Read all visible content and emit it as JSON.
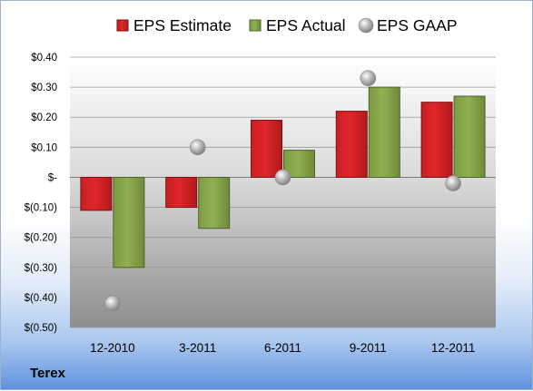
{
  "company_label": "Terex",
  "colors": {
    "estimate": "#e0262a",
    "actual": "#90b050",
    "gaap": "#b4b4b4"
  },
  "chart_data": {
    "type": "bar",
    "title": "",
    "xlabel": "",
    "ylabel": "",
    "categories": [
      "12-2010",
      "3-2011",
      "6-2011",
      "9-2011",
      "12-2011"
    ],
    "series": [
      {
        "name": "EPS Estimate",
        "values": [
          -0.11,
          -0.1,
          0.19,
          0.22,
          0.25
        ],
        "style": "bar"
      },
      {
        "name": "EPS Actual",
        "values": [
          -0.3,
          -0.17,
          0.09,
          0.3,
          0.27
        ],
        "style": "bar"
      },
      {
        "name": "EPS GAAP",
        "values": [
          -0.42,
          0.1,
          0.0,
          0.33,
          -0.02
        ],
        "style": "marker"
      }
    ],
    "ylim": [
      -0.5,
      0.4
    ],
    "yticks": [
      0.4,
      0.3,
      0.2,
      0.1,
      0,
      -0.1,
      -0.2,
      -0.3,
      -0.4,
      -0.5
    ],
    "ytick_labels": [
      "$0.40",
      "$0.30",
      "$0.20",
      "$0.10",
      "$-",
      "$(0.10)",
      "$(0.20)",
      "$(0.30)",
      "$(0.40)",
      "$(0.50)"
    ],
    "grid": true,
    "legend_position": "top"
  }
}
